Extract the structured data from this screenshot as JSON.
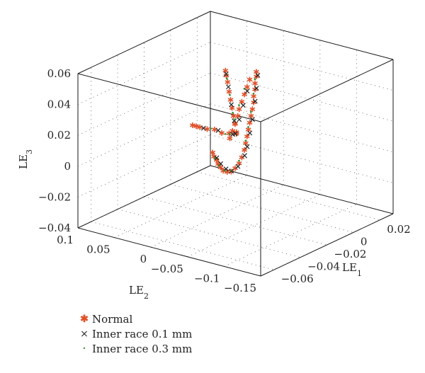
{
  "chart_data": {
    "type": "scatter",
    "projection": "3d",
    "grid": true,
    "legend_position": "bottom-left",
    "axes": {
      "x": {
        "label": "LE1",
        "label_main": "LE",
        "label_sub": "1",
        "ticks": [
          -0.06,
          -0.04,
          -0.02,
          0,
          0.02
        ],
        "tick_labels": [
          "−0.06",
          "−0.04",
          "−0.02",
          "0",
          "0.02"
        ],
        "range": [
          -0.07,
          0.03
        ]
      },
      "y": {
        "label": "LE2",
        "label_main": "LE",
        "label_sub": "2",
        "ticks": [
          -0.15,
          -0.1,
          -0.05,
          0,
          0.05,
          0.1
        ],
        "tick_labels": [
          "−0.15",
          "−0.1",
          "−0.05",
          "0",
          "0.05",
          "0.1"
        ],
        "range": [
          -0.15,
          0.1
        ]
      },
      "z": {
        "label": "LE3",
        "label_main": "LE",
        "label_sub": "3",
        "ticks": [
          -0.04,
          -0.02,
          0,
          0.02,
          0.04,
          0.06
        ],
        "tick_labels": [
          "−0.04",
          "−0.02",
          "0",
          "0.02",
          "0.04",
          "0.06"
        ],
        "range": [
          -0.04,
          0.06
        ]
      }
    },
    "series": [
      {
        "name": "Normal",
        "color": "#e0522a",
        "marker": "asterisk",
        "points": [
          [
            0.004,
            -0.01,
            0.045
          ],
          [
            0.004,
            -0.01,
            0.042
          ],
          [
            0.003,
            -0.01,
            0.038
          ],
          [
            0.003,
            -0.01,
            0.034
          ],
          [
            0.002,
            -0.01,
            0.03
          ],
          [
            0.002,
            -0.01,
            0.026
          ],
          [
            0.001,
            -0.01,
            0.022
          ],
          [
            0.0,
            -0.01,
            0.018
          ],
          [
            -0.001,
            -0.01,
            0.014
          ],
          [
            -0.002,
            -0.01,
            0.01
          ],
          [
            -0.003,
            -0.01,
            0.006
          ],
          [
            -0.004,
            -0.01,
            0.002
          ],
          [
            -0.005,
            -0.01,
            -0.002
          ],
          [
            -0.007,
            -0.01,
            -0.006
          ],
          [
            -0.009,
            -0.01,
            -0.009
          ],
          [
            -0.012,
            -0.01,
            -0.011
          ],
          [
            -0.015,
            -0.01,
            -0.012
          ],
          [
            -0.018,
            -0.01,
            -0.011
          ],
          [
            -0.021,
            -0.01,
            -0.009
          ],
          [
            -0.023,
            -0.01,
            -0.006
          ],
          [
            -0.025,
            -0.01,
            -0.003
          ],
          [
            -0.026,
            -0.01,
            0.0
          ],
          [
            -0.028,
            -0.01,
            0.003
          ],
          [
            -0.029,
            -0.01,
            0.006
          ],
          [
            -0.016,
            -0.01,
            0.01
          ],
          [
            -0.014,
            -0.01,
            0.014
          ],
          [
            -0.012,
            -0.01,
            0.018
          ],
          [
            -0.01,
            -0.01,
            0.022
          ],
          [
            -0.009,
            -0.01,
            0.026
          ],
          [
            -0.007,
            -0.01,
            0.03
          ],
          [
            -0.005,
            -0.01,
            0.034
          ],
          [
            -0.003,
            -0.01,
            0.038
          ],
          [
            -0.001,
            -0.01,
            0.042
          ],
          [
            0.0,
            0.01,
            0.004
          ],
          [
            0.0,
            0.02,
            0.003
          ],
          [
            0.0,
            0.03,
            0.002
          ],
          [
            0.0,
            0.04,
            0.003
          ],
          [
            0.0,
            0.05,
            0.002
          ],
          [
            0.0,
            0.06,
            0.002
          ],
          [
            0.0,
            0.065,
            0.002
          ],
          [
            0.0,
            0.07,
            0.002
          ],
          [
            0.0,
            0.01,
            0.005
          ],
          [
            0.0,
            0.012,
            0.01
          ],
          [
            0.0,
            0.014,
            0.015
          ],
          [
            0.0,
            0.016,
            0.02
          ],
          [
            0.0,
            0.018,
            0.025
          ],
          [
            0.0,
            0.02,
            0.03
          ],
          [
            0.0,
            0.022,
            0.036
          ],
          [
            0.0,
            0.024,
            0.04
          ],
          [
            0.0,
            0.025,
            0.043
          ]
        ]
      },
      {
        "name": "Inner race 0.1 mm",
        "color": "#222222",
        "marker": "x",
        "points": [
          [
            0.004,
            -0.012,
            0.043
          ],
          [
            0.003,
            -0.012,
            0.035
          ],
          [
            0.002,
            -0.012,
            0.027
          ],
          [
            0.0,
            -0.012,
            0.016
          ],
          [
            -0.002,
            -0.012,
            0.008
          ],
          [
            -0.004,
            -0.012,
            0.0
          ],
          [
            -0.006,
            -0.012,
            -0.005
          ],
          [
            -0.011,
            -0.012,
            -0.01
          ],
          [
            -0.016,
            -0.012,
            -0.011
          ],
          [
            -0.02,
            -0.012,
            -0.008
          ],
          [
            -0.024,
            -0.012,
            -0.003
          ],
          [
            -0.027,
            -0.012,
            0.002
          ],
          [
            -0.013,
            -0.012,
            0.012
          ],
          [
            -0.01,
            -0.012,
            0.02
          ],
          [
            -0.007,
            -0.012,
            0.028
          ],
          [
            -0.004,
            -0.012,
            0.036
          ],
          [
            0.0,
            0.015,
            0.003
          ],
          [
            0.0,
            0.035,
            0.003
          ],
          [
            0.0,
            0.055,
            0.002
          ],
          [
            0.0,
            0.013,
            0.012
          ],
          [
            0.0,
            0.017,
            0.022
          ],
          [
            0.0,
            0.021,
            0.033
          ],
          [
            0.0,
            0.024,
            0.041
          ]
        ]
      },
      {
        "name": "Inner race 0.3 mm",
        "color": "#2a8a2a",
        "marker": "dot",
        "points": [
          [
            0.004,
            -0.008,
            0.04
          ],
          [
            0.003,
            -0.008,
            0.031
          ],
          [
            0.001,
            -0.008,
            0.02
          ],
          [
            -0.001,
            -0.008,
            0.011
          ],
          [
            -0.003,
            -0.008,
            0.003
          ],
          [
            -0.008,
            -0.008,
            -0.008
          ],
          [
            -0.014,
            -0.008,
            -0.012
          ],
          [
            -0.019,
            -0.008,
            -0.01
          ],
          [
            -0.023,
            -0.008,
            -0.005
          ],
          [
            -0.026,
            -0.008,
            0.001
          ],
          [
            -0.015,
            -0.008,
            0.012
          ],
          [
            -0.011,
            -0.008,
            0.02
          ],
          [
            -0.008,
            -0.008,
            0.028
          ],
          [
            -0.004,
            -0.008,
            0.037
          ],
          [
            0.0,
            0.025,
            0.002
          ],
          [
            0.0,
            0.045,
            0.003
          ],
          [
            0.0,
            0.015,
            0.017
          ],
          [
            0.0,
            0.019,
            0.028
          ],
          [
            0.0,
            0.023,
            0.038
          ]
        ]
      }
    ]
  },
  "legend": {
    "items": [
      {
        "label": "Normal",
        "symbol": "✱"
      },
      {
        "label": "Inner race 0.1 mm",
        "symbol": "×"
      },
      {
        "label": "Inner race 0.3 mm",
        "symbol": "·"
      }
    ]
  }
}
